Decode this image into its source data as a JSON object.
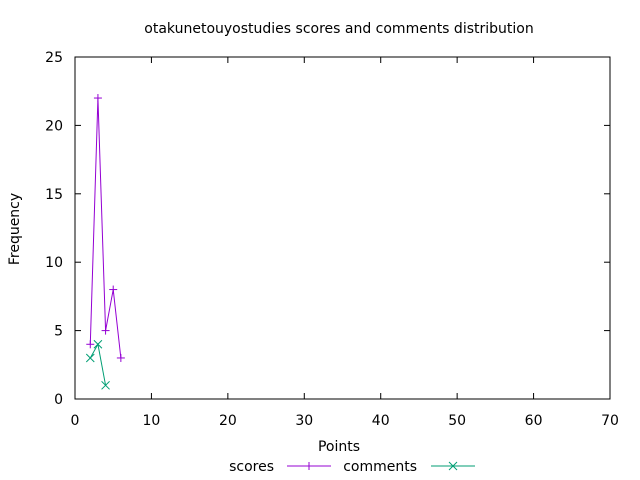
{
  "chart_data": {
    "type": "line",
    "title": "otakunetouyostudies scores and comments distribution",
    "xlabel": "Points",
    "ylabel": "Frequency",
    "xlim": [
      0,
      70
    ],
    "ylim": [
      0,
      25
    ],
    "xticks": [
      0,
      10,
      20,
      30,
      40,
      50,
      60,
      70
    ],
    "yticks": [
      0,
      5,
      10,
      15,
      20,
      25
    ],
    "grid": false,
    "legend_position": "bottom-center",
    "series": [
      {
        "name": "scores",
        "color": "#9400d3",
        "marker": "plus",
        "points": [
          [
            2,
            4
          ],
          [
            3,
            22
          ],
          [
            4,
            5
          ],
          [
            5,
            8
          ],
          [
            6,
            3
          ]
        ]
      },
      {
        "name": "comments",
        "color": "#009e73",
        "marker": "cross",
        "points": [
          [
            2,
            3
          ],
          [
            3,
            4
          ],
          [
            4,
            1
          ]
        ]
      }
    ]
  }
}
